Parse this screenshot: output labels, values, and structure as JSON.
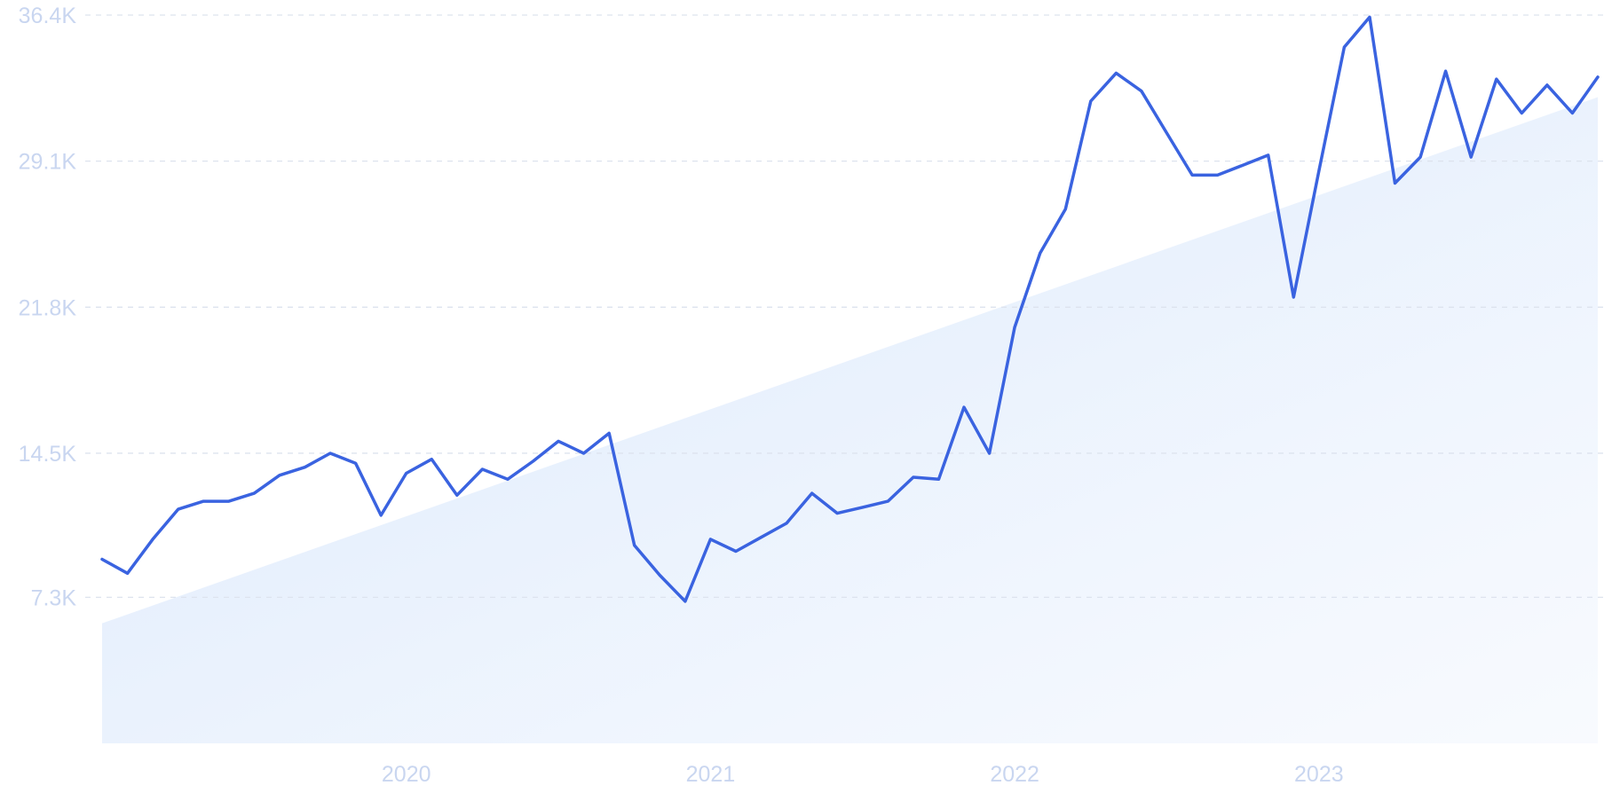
{
  "chart_data": {
    "type": "line",
    "colors": {
      "line": "#3a63e0",
      "trend_fill": "#dce9fb",
      "grid": "#dde3ee",
      "tick_text": "#c9d6f0"
    },
    "grid": true,
    "x_tick_labels": [
      "2020",
      "2021",
      "2022",
      "2023"
    ],
    "y_tick_labels": [
      "7.3K",
      "14.5K",
      "21.8K",
      "29.1K",
      "36.4K"
    ],
    "y_ticks": [
      7300,
      14500,
      21800,
      29100,
      36400
    ],
    "ylim": [
      0,
      36400
    ],
    "xlim": [
      "2019-01",
      "2023-12"
    ],
    "series": [
      {
        "values": [
          [
            "2019-01",
            9200
          ],
          [
            "2019-02",
            8500
          ],
          [
            "2019-03",
            10200
          ],
          [
            "2019-04",
            11700
          ],
          [
            "2019-05",
            12100
          ],
          [
            "2019-06",
            12100
          ],
          [
            "2019-07",
            12500
          ],
          [
            "2019-08",
            13400
          ],
          [
            "2019-09",
            13800
          ],
          [
            "2019-10",
            14500
          ],
          [
            "2019-11",
            14000
          ],
          [
            "2019-12",
            11400
          ],
          [
            "2020-01",
            13500
          ],
          [
            "2020-02",
            14200
          ],
          [
            "2020-03",
            12400
          ],
          [
            "2020-04",
            13700
          ],
          [
            "2020-05",
            13200
          ],
          [
            "2020-06",
            14100
          ],
          [
            "2020-07",
            15100
          ],
          [
            "2020-08",
            14500
          ],
          [
            "2020-09",
            15500
          ],
          [
            "2020-10",
            9900
          ],
          [
            "2020-11",
            8400
          ],
          [
            "2020-12",
            7100
          ],
          [
            "2021-01",
            10200
          ],
          [
            "2021-02",
            9600
          ],
          [
            "2021-03",
            10300
          ],
          [
            "2021-04",
            11000
          ],
          [
            "2021-05",
            12500
          ],
          [
            "2021-06",
            11500
          ],
          [
            "2021-07",
            11800
          ],
          [
            "2021-08",
            12100
          ],
          [
            "2021-09",
            13300
          ],
          [
            "2021-10",
            13200
          ],
          [
            "2021-11",
            16800
          ],
          [
            "2021-12",
            14500
          ],
          [
            "2022-01",
            20800
          ],
          [
            "2022-02",
            24500
          ],
          [
            "2022-03",
            26700
          ],
          [
            "2022-04",
            32100
          ],
          [
            "2022-05",
            33500
          ],
          [
            "2022-06",
            32600
          ],
          [
            "2022-07",
            30500
          ],
          [
            "2022-08",
            28400
          ],
          [
            "2022-09",
            28400
          ],
          [
            "2022-10",
            28900
          ],
          [
            "2022-11",
            29400
          ],
          [
            "2022-12",
            22300
          ],
          [
            "2023-01",
            28600
          ],
          [
            "2023-02",
            34800
          ],
          [
            "2023-03",
            36300
          ],
          [
            "2023-04",
            28000
          ],
          [
            "2023-05",
            29300
          ],
          [
            "2023-06",
            33600
          ],
          [
            "2023-07",
            29300
          ],
          [
            "2023-08",
            33200
          ],
          [
            "2023-09",
            31500
          ],
          [
            "2023-10",
            32900
          ],
          [
            "2023-11",
            31500
          ],
          [
            "2023-12",
            33300
          ]
        ]
      }
    ],
    "trend": {
      "type": "area",
      "start": [
        "2019-01",
        6000
      ],
      "end": [
        "2023-12",
        32300
      ]
    }
  }
}
